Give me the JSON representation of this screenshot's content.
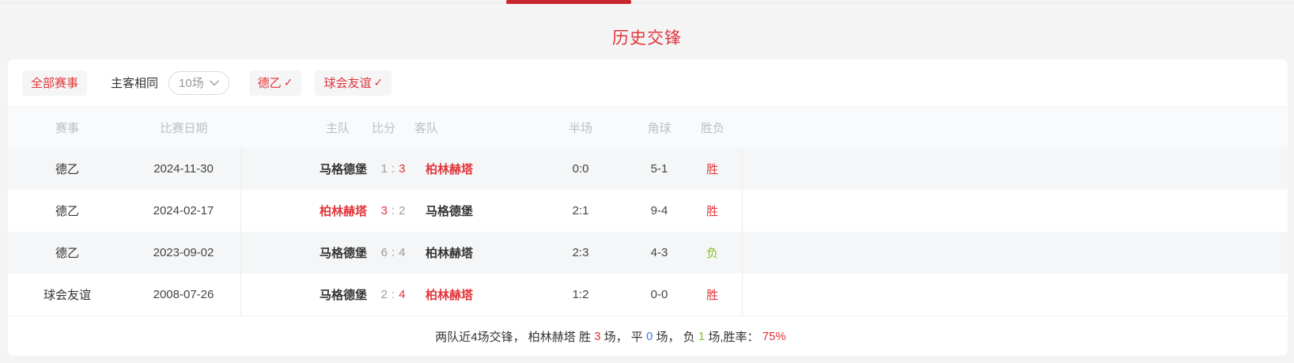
{
  "page": {
    "title": "历史交锋"
  },
  "filters": {
    "all_label": "全部赛事",
    "same_venue_label": "主客相同",
    "count_value": "10场",
    "league_label": "德乙",
    "friendly_label": "球会友谊",
    "check_glyph": "✓"
  },
  "table": {
    "columns": [
      "赛事",
      "比赛日期",
      "主队",
      "比分",
      "客队",
      "半场",
      "角球",
      "胜负"
    ],
    "rows": [
      {
        "league": "德乙",
        "date": "2024-11-30",
        "home": "马格德堡",
        "home_hl": false,
        "home_score": "1",
        "home_score_hl": false,
        "away_score": "3",
        "away_score_hl": true,
        "away": "柏林赫塔",
        "away_hl": true,
        "half": "0:0",
        "corners": "5-1",
        "result": "胜",
        "result_type": "win"
      },
      {
        "league": "德乙",
        "date": "2024-02-17",
        "home": "柏林赫塔",
        "home_hl": true,
        "home_score": "3",
        "home_score_hl": true,
        "away_score": "2",
        "away_score_hl": false,
        "away": "马格德堡",
        "away_hl": false,
        "half": "2:1",
        "corners": "9-4",
        "result": "胜",
        "result_type": "win"
      },
      {
        "league": "德乙",
        "date": "2023-09-02",
        "home": "马格德堡",
        "home_hl": false,
        "home_score": "6",
        "home_score_hl": false,
        "away_score": "4",
        "away_score_hl": false,
        "away": "柏林赫塔",
        "away_hl": false,
        "half": "2:3",
        "corners": "4-3",
        "result": "负",
        "result_type": "loss"
      },
      {
        "league": "球会友谊",
        "date": "2008-07-26",
        "home": "马格德堡",
        "home_hl": false,
        "home_score": "2",
        "home_score_hl": false,
        "away_score": "4",
        "away_score_hl": true,
        "away": "柏林赫塔",
        "away_hl": true,
        "half": "1:2",
        "corners": "0-0",
        "result": "胜",
        "result_type": "win"
      }
    ]
  },
  "summary": {
    "prefix": "两队近4场交锋， 柏林赫塔 胜 ",
    "wins": "3",
    "mid1": " 场， 平 ",
    "draws": "0",
    "mid2": " 场， 负 ",
    "losses": "1",
    "mid3": " 场,胜率： ",
    "win_rate": "75%"
  },
  "colors": {
    "accent-red": "#e1353b",
    "tab-red": "#c9262e",
    "win-red": "#e1353b",
    "loss-green": "#83c322",
    "draw-blue": "#3a7ff0"
  }
}
